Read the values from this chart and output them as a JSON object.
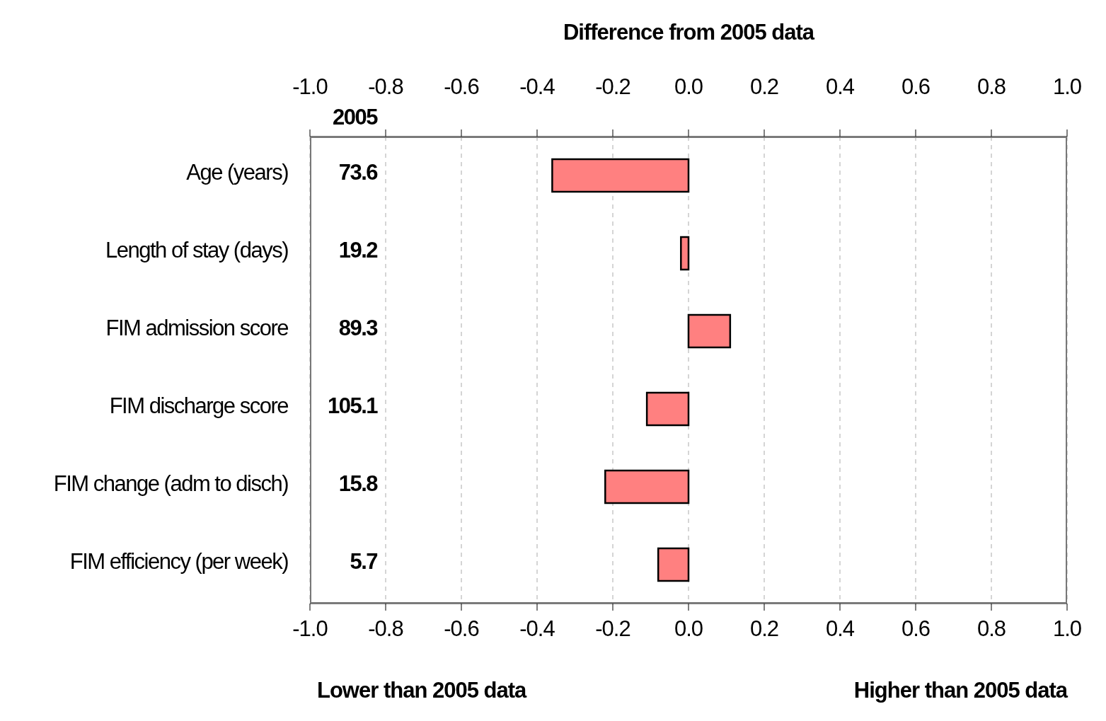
{
  "chart_data": {
    "type": "bar",
    "orientation": "horizontal",
    "x2label": "Difference from 2005 data",
    "categories": [
      "Age (years)",
      "Length of stay (days)",
      "FIM admission score",
      "FIM discharge score",
      "FIM change (adm to disch)",
      "FIM efficiency (per week)"
    ],
    "values": [
      -0.36,
      -0.02,
      0.11,
      -0.11,
      -0.22,
      -0.08
    ],
    "color": "#ff8080",
    "xlim": [
      -1,
      1
    ],
    "xticks": [
      {
        "value": -1,
        "label": "-1.0"
      },
      -0.8,
      -0.6,
      -0.4,
      -0.2,
      {
        "value": 0,
        "label": "0.0"
      },
      0.2,
      0.4,
      0.6,
      0.8,
      {
        "value": 1,
        "label": "1.0"
      }
    ],
    "x2lim": [
      -1,
      1
    ],
    "x2ticks": [
      {
        "value": -1,
        "label": "-1.0"
      },
      -0.8,
      -0.6,
      -0.4,
      -0.2,
      {
        "value": 0,
        "label": "0.0"
      },
      0.2,
      0.4,
      0.6,
      0.8,
      {
        "value": 1,
        "label": "1.0"
      }
    ],
    "grid": "x",
    "annotations": [
      "2005",
      "Lower than 2005 data",
      "Higher than 2005 data",
      "73.6",
      "19.2",
      "89.3",
      "105.1",
      "15.8",
      "5.7"
    ]
  }
}
